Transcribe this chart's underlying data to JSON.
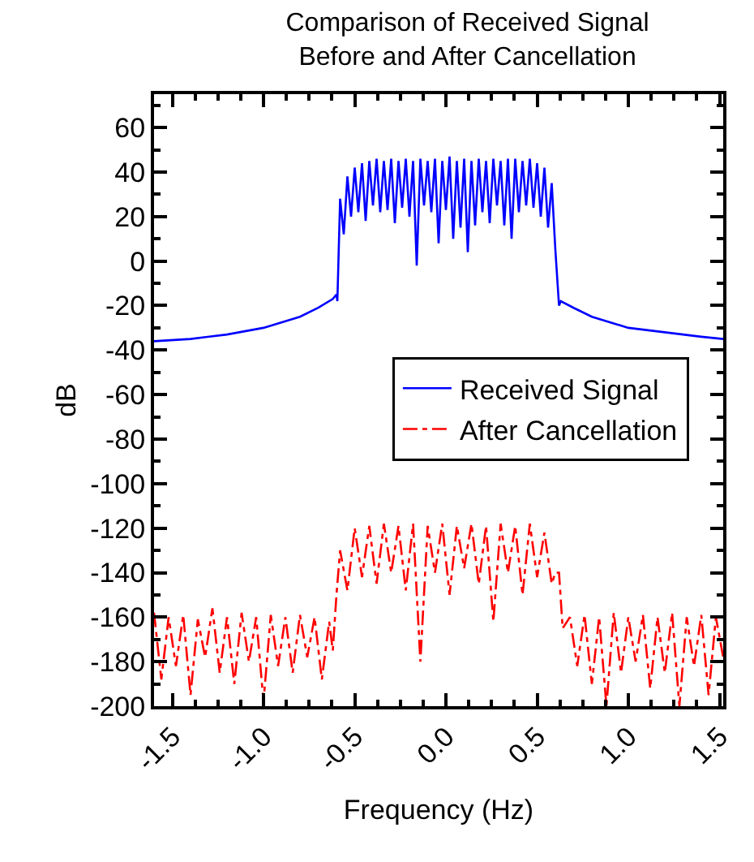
{
  "chart_data": {
    "type": "line",
    "title": "Comparison of Received Signal Before and After Cancellation",
    "xlabel": "Frequency (Hz)",
    "ylabel": "dB",
    "xlim": [
      -1.6,
      1.52
    ],
    "ylim": [
      -200,
      75
    ],
    "xticks": [
      {
        "value": -1.5,
        "label": "-1.5"
      },
      {
        "value": -1,
        "label": "-1.0"
      },
      {
        "value": -0.5,
        "label": "-0.5"
      },
      {
        "value": 0,
        "label": "0.0"
      },
      {
        "value": 0.5,
        "label": "0.5"
      },
      {
        "value": 1,
        "label": "1.0"
      },
      {
        "value": 1.5,
        "label": "1.5"
      }
    ],
    "yticks": [
      -200,
      -180,
      -160,
      -140,
      -120,
      -100,
      -80,
      -60,
      -40,
      -20,
      0,
      20,
      40,
      60
    ],
    "legend": "center right",
    "series": [
      {
        "name": "Received Signal",
        "color": "#0000ff",
        "line_style": "solid",
        "x": [
          -1.6,
          -1.4,
          -1.2,
          -1.0,
          -0.8,
          -0.7,
          -0.62,
          -0.6,
          -0.595,
          -0.58,
          -0.56,
          -0.54,
          -0.52,
          -0.5,
          -0.48,
          -0.46,
          -0.44,
          -0.42,
          -0.4,
          -0.38,
          -0.36,
          -0.34,
          -0.32,
          -0.3,
          -0.28,
          -0.26,
          -0.24,
          -0.22,
          -0.2,
          -0.18,
          -0.16,
          -0.14,
          -0.12,
          -0.1,
          -0.08,
          -0.06,
          -0.04,
          -0.02,
          0.0,
          0.02,
          0.04,
          0.06,
          0.08,
          0.1,
          0.12,
          0.14,
          0.16,
          0.18,
          0.2,
          0.22,
          0.24,
          0.26,
          0.28,
          0.3,
          0.32,
          0.34,
          0.36,
          0.38,
          0.4,
          0.42,
          0.44,
          0.46,
          0.48,
          0.5,
          0.52,
          0.54,
          0.56,
          0.58,
          0.6,
          0.62,
          0.63,
          0.7,
          0.8,
          1.0,
          1.2,
          1.4,
          1.52
        ],
        "values": [
          -36,
          -35,
          -33,
          -30,
          -25,
          -21,
          -17,
          -15,
          -18,
          28,
          12,
          38,
          20,
          42,
          22,
          44,
          18,
          45,
          25,
          46,
          22,
          45,
          23,
          46,
          17,
          45,
          24,
          46,
          20,
          45,
          -2,
          46,
          25,
          45,
          22,
          46,
          8,
          45,
          23,
          47,
          10,
          45,
          15,
          46,
          4,
          45,
          16,
          46,
          22,
          45,
          17,
          46,
          25,
          45,
          16,
          46,
          10,
          46,
          22,
          45,
          25,
          46,
          24,
          44,
          20,
          42,
          15,
          35,
          5,
          -20,
          -18,
          -21,
          -25,
          -30,
          -32,
          -34,
          -35
        ]
      },
      {
        "name": "After Cancellation",
        "color": "#ff0000",
        "line_style": "dashed",
        "x": [
          -1.6,
          -1.56,
          -1.52,
          -1.48,
          -1.44,
          -1.4,
          -1.36,
          -1.32,
          -1.28,
          -1.24,
          -1.2,
          -1.16,
          -1.12,
          -1.08,
          -1.04,
          -1.0,
          -0.96,
          -0.92,
          -0.88,
          -0.84,
          -0.8,
          -0.76,
          -0.72,
          -0.68,
          -0.64,
          -0.62,
          -0.6,
          -0.58,
          -0.54,
          -0.5,
          -0.46,
          -0.42,
          -0.38,
          -0.34,
          -0.3,
          -0.26,
          -0.22,
          -0.18,
          -0.14,
          -0.1,
          -0.06,
          -0.02,
          0.02,
          0.06,
          0.1,
          0.14,
          0.18,
          0.22,
          0.26,
          0.3,
          0.34,
          0.38,
          0.42,
          0.46,
          0.5,
          0.54,
          0.58,
          0.6,
          0.62,
          0.64,
          0.68,
          0.72,
          0.76,
          0.8,
          0.84,
          0.88,
          0.92,
          0.96,
          1.0,
          1.04,
          1.08,
          1.12,
          1.16,
          1.2,
          1.24,
          1.28,
          1.32,
          1.36,
          1.4,
          1.44,
          1.48,
          1.52
        ],
        "values": [
          -158,
          -188,
          -160,
          -182,
          -159,
          -195,
          -161,
          -178,
          -156,
          -185,
          -160,
          -190,
          -158,
          -180,
          -160,
          -198,
          -159,
          -182,
          -160,
          -185,
          -159,
          -178,
          -160,
          -188,
          -162,
          -175,
          -150,
          -130,
          -148,
          -120,
          -142,
          -119,
          -145,
          -118,
          -140,
          -119,
          -148,
          -118,
          -180,
          -119,
          -140,
          -118,
          -150,
          -119,
          -138,
          -118,
          -145,
          -119,
          -162,
          -118,
          -140,
          -119,
          -150,
          -118,
          -142,
          -122,
          -145,
          -140,
          -140,
          -165,
          -160,
          -182,
          -159,
          -190,
          -160,
          -200,
          -158,
          -185,
          -160,
          -180,
          -159,
          -192,
          -160,
          -185,
          -158,
          -200,
          -160,
          -182,
          -159,
          -195,
          -160,
          -178
        ]
      }
    ]
  }
}
